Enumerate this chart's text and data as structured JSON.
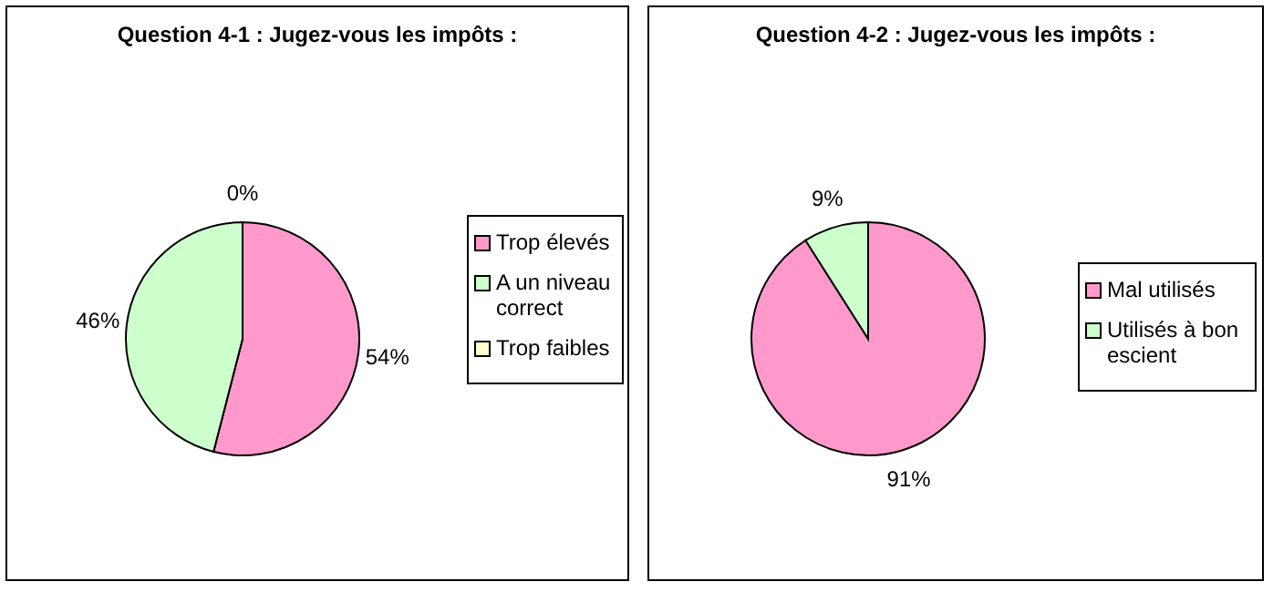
{
  "chart_data": [
    {
      "type": "pie",
      "title": "Question 4-1 : Jugez-vous les impôts :",
      "categories": [
        "Trop élevés",
        "A un niveau correct",
        "Trop faibles"
      ],
      "values": [
        54,
        46,
        0
      ],
      "value_labels": [
        "54%",
        "46%",
        "0%"
      ],
      "colors": [
        "#ff99cc",
        "#ccffcc",
        "#ffffcc"
      ],
      "legend": "right"
    },
    {
      "type": "pie",
      "title": "Question 4-2 : Jugez-vous les impôts :",
      "categories": [
        "Mal utilisés",
        "Utilisés à bon escient"
      ],
      "values": [
        91,
        9
      ],
      "value_labels": [
        "91%",
        "9%"
      ],
      "colors": [
        "#ff99cc",
        "#ccffcc"
      ],
      "legend": "right"
    }
  ]
}
